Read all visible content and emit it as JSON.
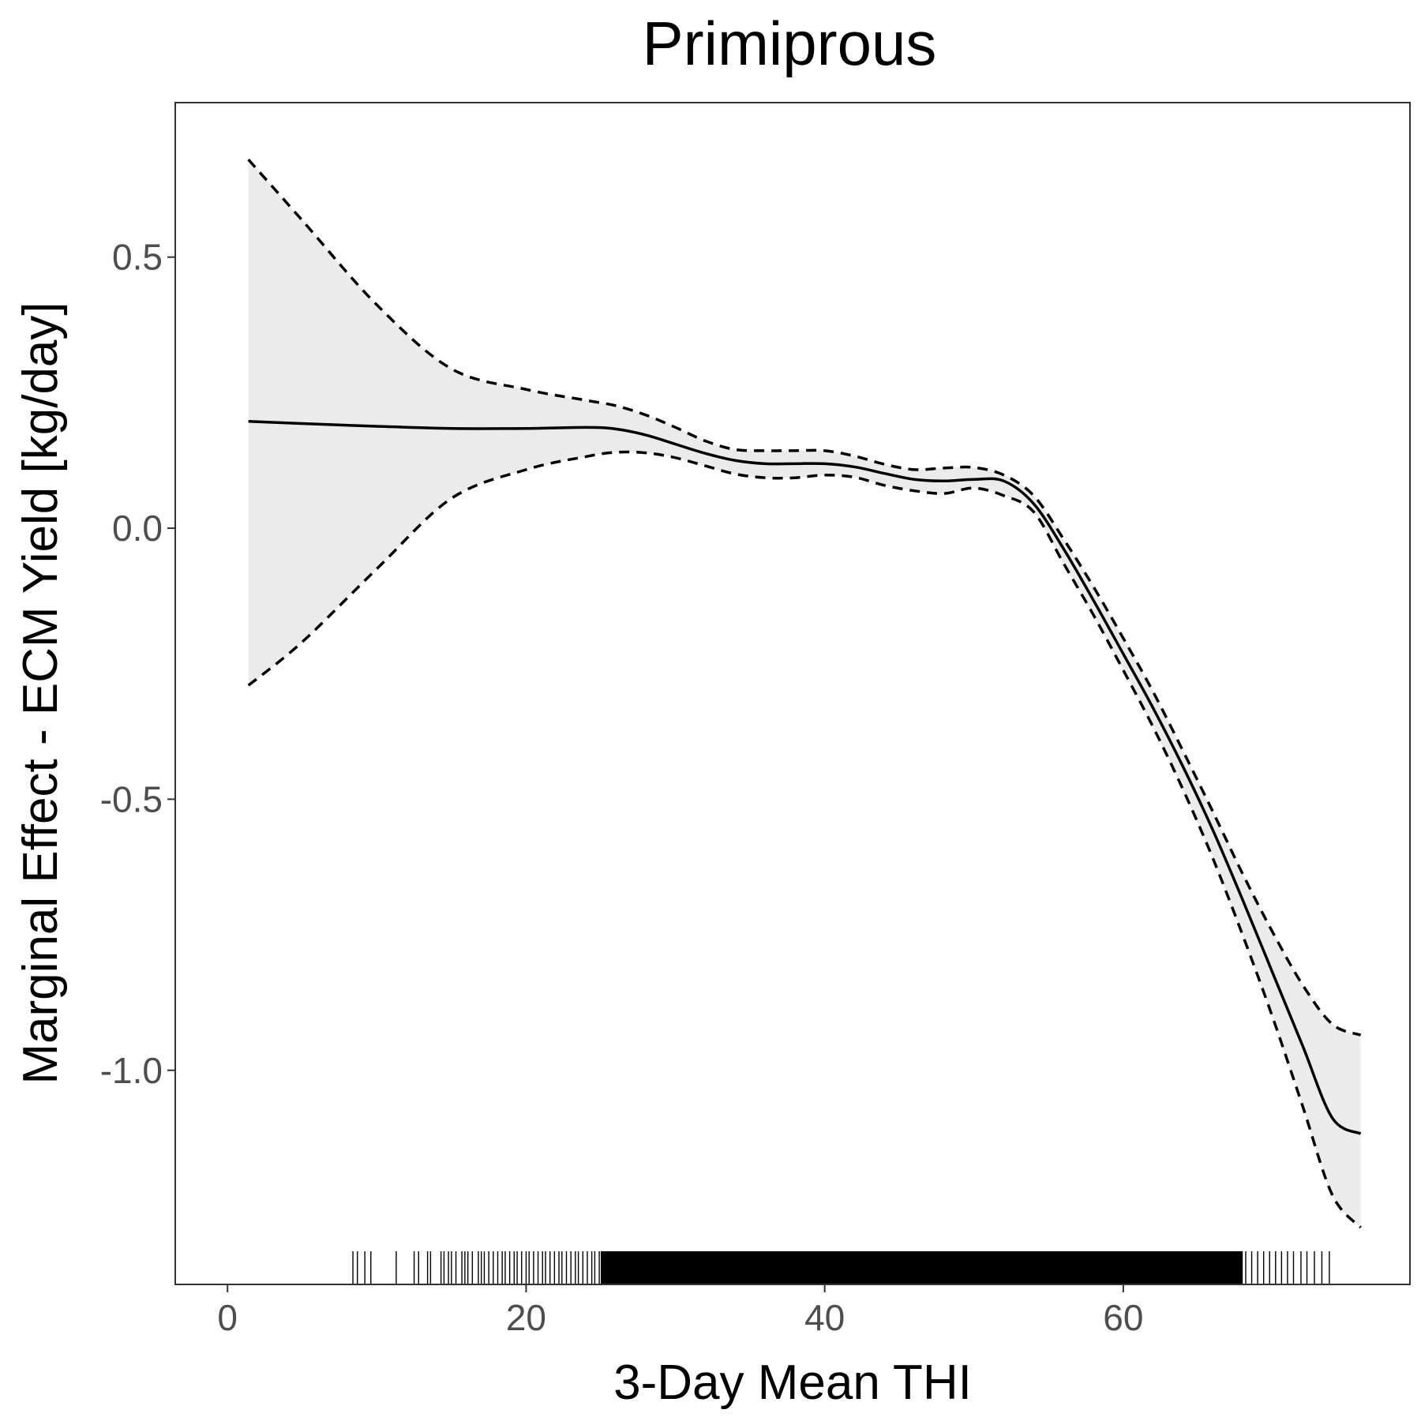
{
  "chart_data": {
    "type": "line",
    "title": "Primiprous",
    "xlabel": "3-Day Mean THI",
    "ylabel": "Marginal Effect - ECM Yield [kg/day]",
    "xlim": [
      -3.5,
      79.2
    ],
    "ylim": [
      -1.395,
      0.785
    ],
    "x_ticks": [
      0,
      20,
      40,
      60
    ],
    "x_tick_labels": [
      "0",
      "20",
      "40",
      "60"
    ],
    "y_ticks": [
      0.5,
      0.0,
      -0.5,
      -1.0
    ],
    "y_tick_labels": [
      "0.5",
      "0.0",
      "-0.5",
      "-1.0"
    ],
    "grid": false,
    "legend": "none",
    "series": [
      {
        "role": "estimate",
        "line_style": "solid",
        "x": [
          1.4,
          5,
          10,
          15,
          20,
          24,
          26,
          28,
          30,
          32,
          34,
          36,
          38,
          40,
          42,
          44,
          46,
          48,
          50,
          52,
          54,
          56,
          58,
          60,
          62,
          64,
          66,
          68,
          70,
          72,
          74,
          75.9
        ],
        "y": [
          0.197,
          0.193,
          0.188,
          0.184,
          0.184,
          0.186,
          0.183,
          0.172,
          0.155,
          0.138,
          0.125,
          0.119,
          0.119,
          0.119,
          0.113,
          0.101,
          0.09,
          0.087,
          0.09,
          0.087,
          0.045,
          -0.038,
          -0.133,
          -0.232,
          -0.332,
          -0.44,
          -0.557,
          -0.686,
          -0.82,
          -0.954,
          -1.088,
          -1.117
        ]
      },
      {
        "role": "upper-bound",
        "line_style": "dashed",
        "x": [
          1.4,
          5,
          10,
          15,
          20,
          24,
          26,
          28,
          30,
          32,
          34,
          36,
          38,
          40,
          42,
          44,
          46,
          48,
          50,
          52,
          54,
          56,
          58,
          60,
          62,
          64,
          66,
          68,
          70,
          72,
          74,
          75.9
        ],
        "y": [
          0.68,
          0.568,
          0.412,
          0.294,
          0.256,
          0.236,
          0.226,
          0.209,
          0.186,
          0.161,
          0.145,
          0.143,
          0.143,
          0.143,
          0.133,
          0.118,
          0.108,
          0.111,
          0.112,
          0.098,
          0.06,
          -0.02,
          -0.108,
          -0.203,
          -0.302,
          -0.411,
          -0.523,
          -0.638,
          -0.745,
          -0.842,
          -0.915,
          -0.935
        ]
      },
      {
        "role": "lower-bound",
        "line_style": "dashed",
        "x": [
          1.4,
          5,
          10,
          15,
          20,
          24,
          26,
          28,
          30,
          32,
          34,
          36,
          38,
          40,
          42,
          44,
          46,
          48,
          50,
          52,
          54,
          56,
          58,
          60,
          62,
          64,
          66,
          68,
          70,
          72,
          74,
          75.9
        ],
        "y": [
          -0.29,
          -0.21,
          -0.075,
          0.055,
          0.108,
          0.132,
          0.14,
          0.139,
          0.13,
          0.115,
          0.1,
          0.093,
          0.093,
          0.098,
          0.094,
          0.079,
          0.069,
          0.064,
          0.074,
          0.06,
          0.03,
          -0.065,
          -0.16,
          -0.262,
          -0.367,
          -0.482,
          -0.609,
          -0.751,
          -0.902,
          -1.065,
          -1.23,
          -1.29
        ]
      }
    ],
    "ribbon": {
      "fill": "#ebebeb"
    },
    "rug": {
      "axis": "x",
      "color": "#000000",
      "sparse_positions": [
        8.4,
        8.7,
        9.2,
        9.6,
        11.3,
        12.5,
        12.8,
        13.4,
        13.6,
        14.3,
        14.5,
        14.8,
        15.0,
        15.3,
        15.7,
        15.9,
        16.1,
        16.4,
        16.8,
        17.0,
        17.2,
        17.5,
        17.8,
        18.1,
        18.4,
        18.6,
        18.9,
        19.2,
        19.4,
        19.7,
        20.0,
        20.2,
        20.5,
        20.8,
        21.1,
        21.3,
        21.6,
        21.9,
        22.2,
        22.4,
        22.7,
        23.0,
        23.3,
        23.5,
        23.8,
        24.1,
        24.4,
        24.6,
        24.9,
        25.2
      ],
      "dense_range": [
        25.0,
        68.0
      ],
      "upper_sparse_positions": [
        68.2,
        68.6,
        69.0,
        69.4,
        69.8,
        70.2,
        70.6,
        71.0,
        71.4,
        71.9,
        72.3,
        72.8,
        73.3,
        73.8
      ]
    },
    "colors": {
      "line": "#000000",
      "ribbon": "#ebebeb",
      "panel_border": "#333333",
      "tick_label": "#4d4d4d",
      "tick_mark": "#333333"
    }
  }
}
